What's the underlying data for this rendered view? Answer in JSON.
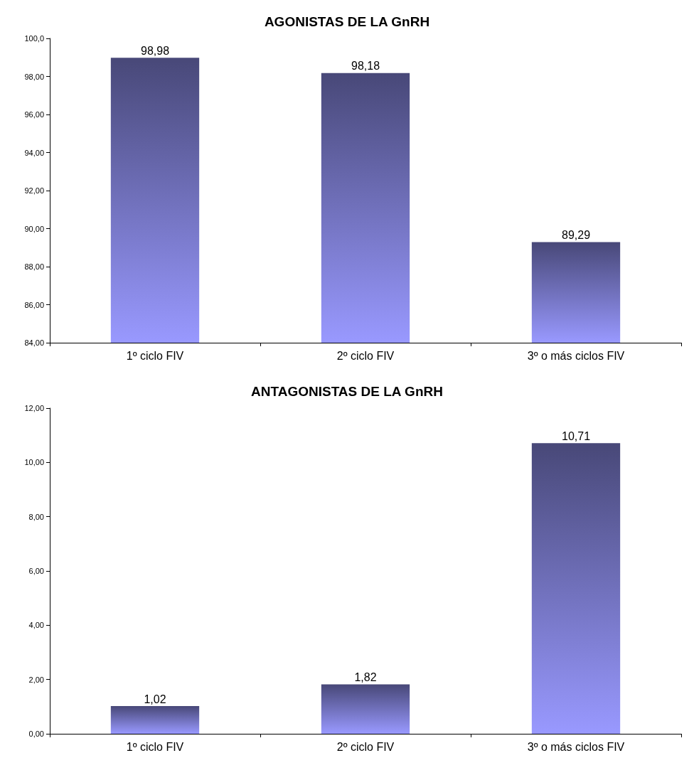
{
  "chart_data": [
    {
      "type": "bar",
      "title": "AGONISTAS DE LA GnRH",
      "categories": [
        "1º ciclo FIV",
        "2º ciclo FIV",
        "3º o más ciclos FIV"
      ],
      "values": [
        98.98,
        98.18,
        89.29
      ],
      "value_labels": [
        "98,98",
        "98,18",
        "89,29"
      ],
      "color": "#9999ff",
      "ylim": [
        84,
        100
      ],
      "yticks": [
        {
          "value": 84,
          "label": "84,00"
        },
        {
          "value": 86,
          "label": "86,00"
        },
        {
          "value": 88,
          "label": "88,00"
        },
        {
          "value": 90,
          "label": "90,00"
        },
        {
          "value": 92,
          "label": "92,00"
        },
        {
          "value": 94,
          "label": "94,00"
        },
        {
          "value": 96,
          "label": "96,00"
        },
        {
          "value": 98,
          "label": "98,00"
        },
        {
          "value": 100,
          "label": "100,0"
        }
      ],
      "grid": false
    },
    {
      "type": "bar",
      "title": "ANTAGONISTAS DE LA GnRH",
      "categories": [
        "1º ciclo FIV",
        "2º ciclo FIV",
        "3º o más ciclos FIV"
      ],
      "values": [
        1.02,
        1.82,
        10.71
      ],
      "value_labels": [
        "1,02",
        "1,82",
        "10,71"
      ],
      "color": "#9999ff",
      "ylim": [
        0,
        12
      ],
      "yticks": [
        {
          "value": 0,
          "label": "0,00"
        },
        {
          "value": 2,
          "label": "2,00"
        },
        {
          "value": 4,
          "label": "4,00"
        },
        {
          "value": 6,
          "label": "6,00"
        },
        {
          "value": 8,
          "label": "8,00"
        },
        {
          "value": 10,
          "label": "10,00"
        },
        {
          "value": 12,
          "label": "12,00"
        }
      ],
      "grid": false
    }
  ]
}
